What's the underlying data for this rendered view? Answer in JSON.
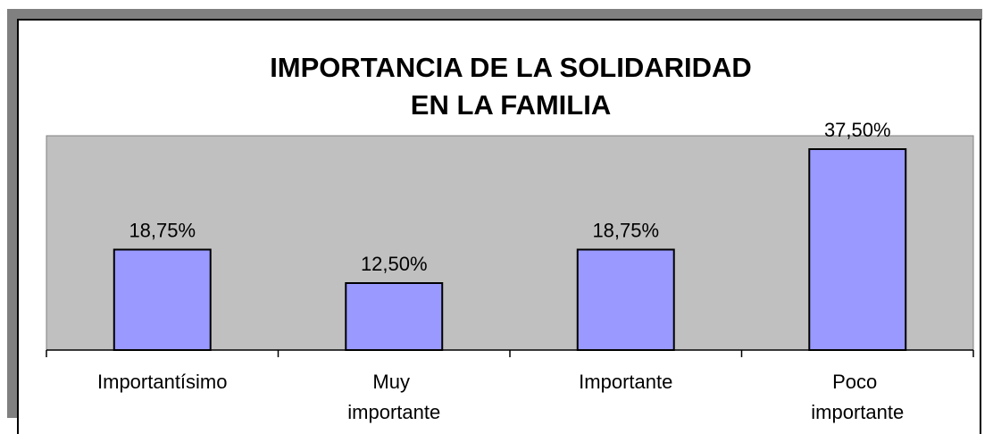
{
  "chart_data": {
    "type": "bar",
    "title": "IMPORTANCIA DE LA SOLIDARIDAD\nEN LA FAMILIA",
    "categories": [
      "Importantísimo",
      "Muy importante",
      "Importante",
      "Poco importante"
    ],
    "values": [
      18.75,
      12.5,
      18.75,
      37.5
    ],
    "value_labels": [
      "18,75%",
      "12,50%",
      "18,75%",
      "37,50%"
    ],
    "color": "#9999ff",
    "ylim": [
      0,
      40
    ]
  }
}
